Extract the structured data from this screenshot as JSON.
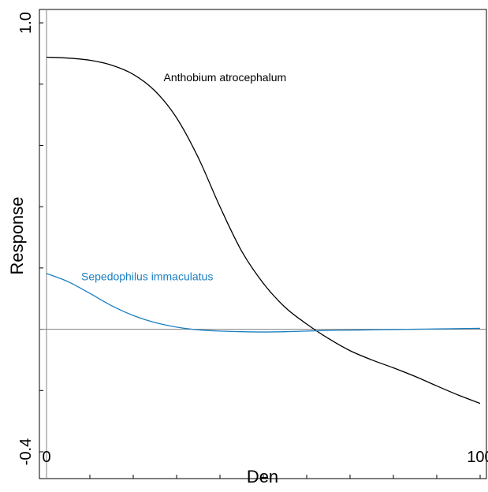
{
  "chart_data": {
    "type": "line",
    "title": "",
    "xlabel": "Den",
    "ylabel": "Response",
    "xlim": [
      0,
      100
    ],
    "ylim": [
      -0.4,
      1.0
    ],
    "x_tick_labels": [
      "0",
      "100"
    ],
    "y_tick_labels": [
      "-0.4",
      "1.0"
    ],
    "x_minor_ticks": [
      0,
      10,
      20,
      30,
      40,
      50,
      60,
      70,
      80,
      90,
      100
    ],
    "y_minor_ticks": [
      -0.4,
      -0.2,
      0.0,
      0.2,
      0.4,
      0.6,
      0.8,
      1.0
    ],
    "reference_line_y": 0.0,
    "grid": false,
    "series": [
      {
        "name": "Anthobium atrocephalum",
        "color": "#000000",
        "x": [
          0,
          5,
          10,
          15,
          20,
          25,
          30,
          35,
          40,
          45,
          50,
          55,
          60,
          65,
          70,
          75,
          80,
          85,
          90,
          95,
          100
        ],
        "y": [
          0.888,
          0.885,
          0.878,
          0.862,
          0.832,
          0.778,
          0.69,
          0.56,
          0.4,
          0.255,
          0.15,
          0.072,
          0.017,
          -0.03,
          -0.07,
          -0.1,
          -0.126,
          -0.154,
          -0.185,
          -0.215,
          -0.242
        ]
      },
      {
        "name": "Sepedophilus immaculatus",
        "color": "#1a7fc1",
        "x": [
          0,
          5,
          10,
          15,
          20,
          25,
          30,
          35,
          40,
          45,
          50,
          55,
          60,
          65,
          70,
          75,
          80,
          85,
          90,
          95,
          100
        ],
        "y": [
          0.182,
          0.155,
          0.117,
          0.077,
          0.045,
          0.022,
          0.007,
          -0.002,
          -0.006,
          -0.008,
          -0.009,
          -0.008,
          -0.006,
          -0.004,
          -0.003,
          -0.002,
          -0.001,
          0.0,
          0.001,
          0.002,
          0.003
        ]
      }
    ],
    "annotations": [
      {
        "text": "Anthobium atrocephalum",
        "x": 27,
        "y": 0.81,
        "color": "#000000"
      },
      {
        "text": "Sepedophilus immaculatus",
        "x": 8,
        "y": 0.16,
        "color": "#1a7fc1"
      }
    ]
  }
}
